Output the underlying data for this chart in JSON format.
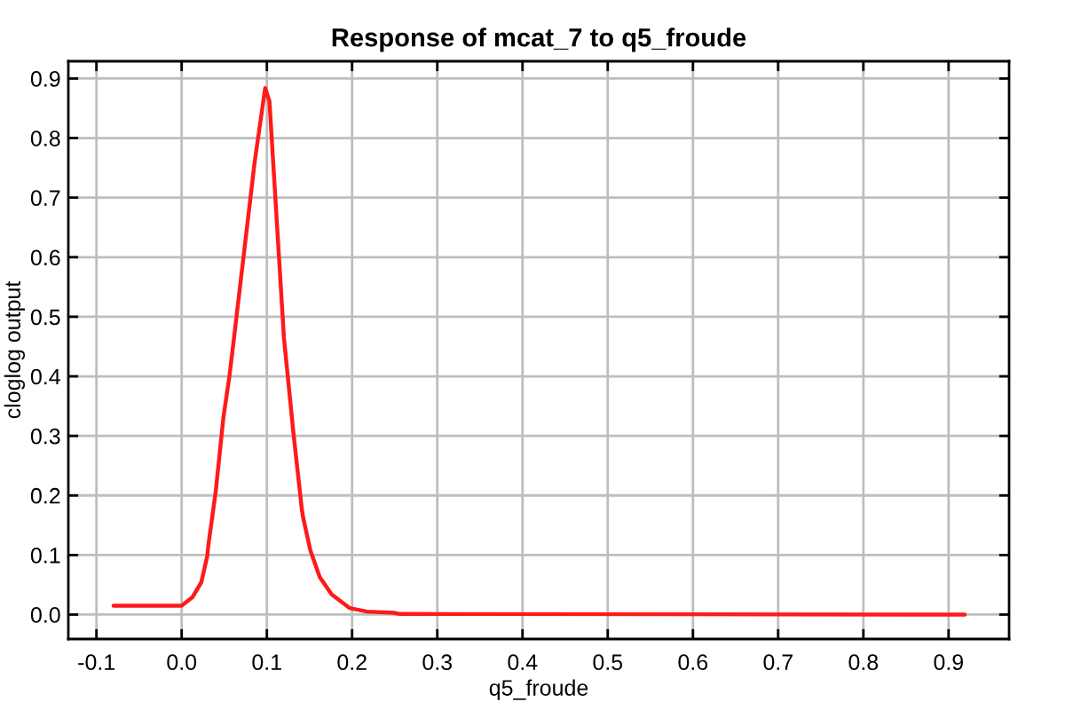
{
  "chart_data": {
    "type": "line",
    "title": "Response of mcat_7 to q5_froude",
    "xlabel": "q5_froude",
    "ylabel": "cloglog output",
    "series": [
      {
        "color": "#ff1a1a",
        "x": [
          -0.08,
          0.0,
          0.0125,
          0.023,
          0.03,
          0.031,
          0.04,
          0.049,
          0.056,
          0.059,
          0.0855,
          0.098,
          0.103,
          0.12,
          0.131,
          0.141,
          0.1425,
          0.151,
          0.162,
          0.176,
          0.197,
          0.2175,
          0.249,
          0.256,
          0.919
        ],
        "values": [
          0.015,
          0.015,
          0.029,
          0.054,
          0.098,
          0.113,
          0.207,
          0.331,
          0.4,
          0.435,
          0.758,
          0.884,
          0.862,
          0.465,
          0.307,
          0.177,
          0.163,
          0.108,
          0.063,
          0.034,
          0.011,
          0.005,
          0.003,
          0.001,
          0.0
        ]
      }
    ],
    "xlim": [
      -0.133,
      0.971
    ],
    "ylim": [
      -0.041,
      0.929
    ],
    "xticks": [
      -0.1,
      {
        "value": 0,
        "label": "0.0"
      },
      0.1,
      0.2,
      0.3,
      0.4,
      0.5,
      0.6,
      0.7,
      0.8,
      0.9
    ],
    "yticks": [
      {
        "value": 0,
        "label": "0.0"
      },
      0.1,
      0.2,
      0.3,
      0.4,
      0.5,
      0.6,
      0.7,
      0.8,
      0.9
    ],
    "grid": true,
    "marker": "none",
    "line_style": "solid"
  }
}
